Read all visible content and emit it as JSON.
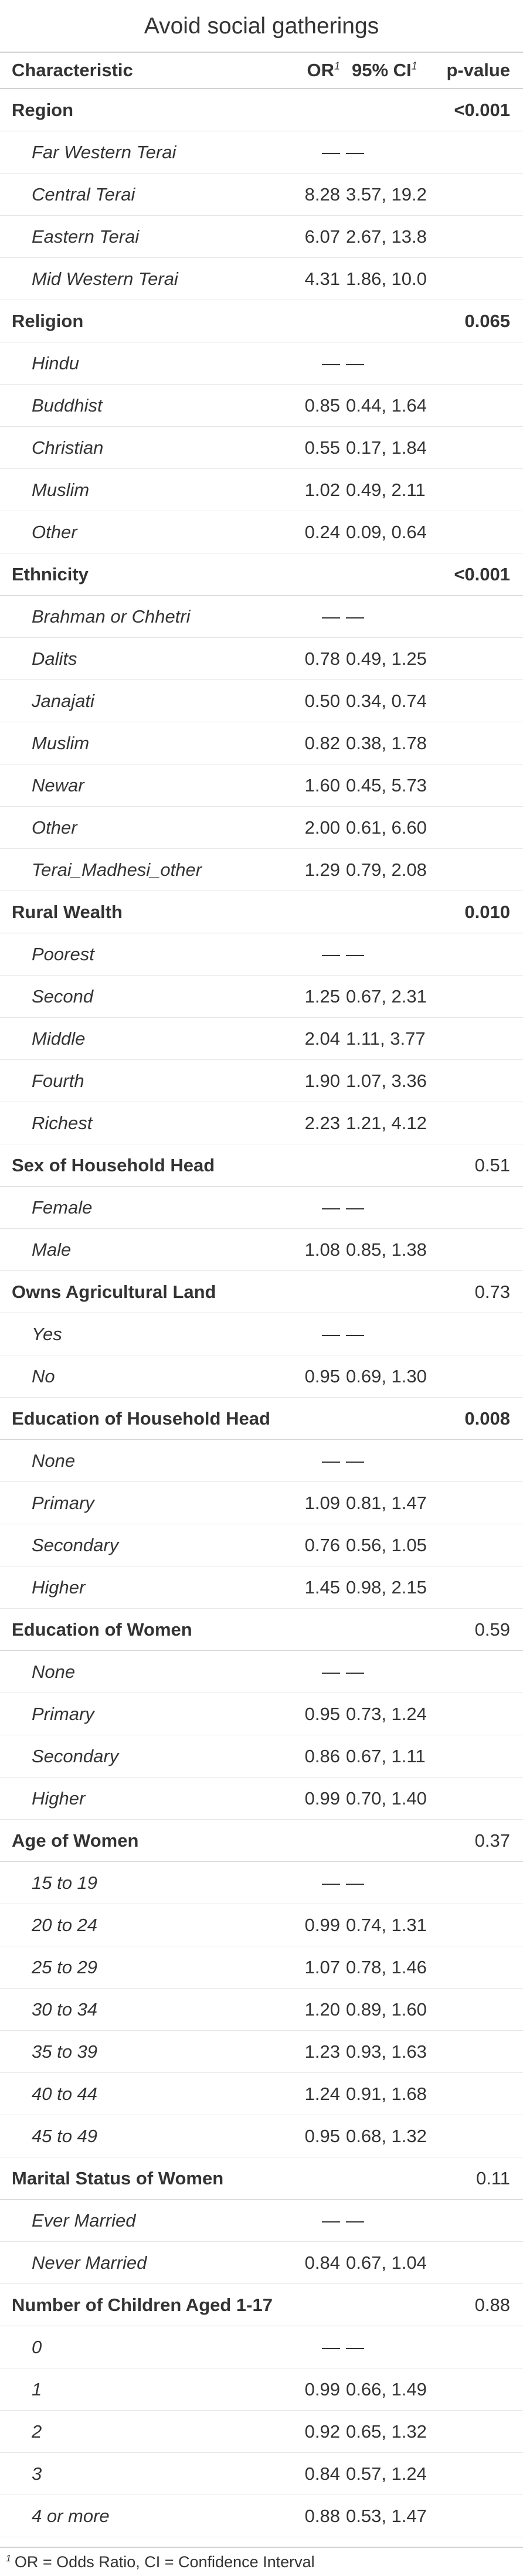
{
  "table": {
    "title": "Avoid social gatherings",
    "headers": {
      "characteristic": "Characteristic",
      "or": "OR",
      "ci": "95% CI",
      "p": "p-value",
      "footnote_mark": "1"
    },
    "footnote": {
      "mark": "1",
      "text": "OR = Odds Ratio, CI = Confidence Interval"
    },
    "groups": [
      {
        "label": "Region",
        "p": "<0.001",
        "p_bold": true,
        "rows": [
          {
            "label": "Far Western Terai",
            "or": "—",
            "ci": "—"
          },
          {
            "label": "Central Terai",
            "or": "8.28",
            "ci": "3.57, 19.2"
          },
          {
            "label": "Eastern Terai",
            "or": "6.07",
            "ci": "2.67, 13.8"
          },
          {
            "label": "Mid Western Terai",
            "or": "4.31",
            "ci": "1.86, 10.0"
          }
        ]
      },
      {
        "label": "Religion",
        "p": "0.065",
        "p_bold": true,
        "rows": [
          {
            "label": "Hindu",
            "or": "—",
            "ci": "—"
          },
          {
            "label": "Buddhist",
            "or": "0.85",
            "ci": "0.44, 1.64"
          },
          {
            "label": "Christian",
            "or": "0.55",
            "ci": "0.17, 1.84"
          },
          {
            "label": "Muslim",
            "or": "1.02",
            "ci": "0.49, 2.11"
          },
          {
            "label": "Other",
            "or": "0.24",
            "ci": "0.09, 0.64"
          }
        ]
      },
      {
        "label": "Ethnicity",
        "p": "<0.001",
        "p_bold": true,
        "rows": [
          {
            "label": "Brahman or Chhetri",
            "or": "—",
            "ci": "—"
          },
          {
            "label": "Dalits",
            "or": "0.78",
            "ci": "0.49, 1.25"
          },
          {
            "label": "Janajati",
            "or": "0.50",
            "ci": "0.34, 0.74"
          },
          {
            "label": "Muslim",
            "or": "0.82",
            "ci": "0.38, 1.78"
          },
          {
            "label": "Newar",
            "or": "1.60",
            "ci": "0.45, 5.73"
          },
          {
            "label": "Other",
            "or": "2.00",
            "ci": "0.61, 6.60"
          },
          {
            "label": "Terai_Madhesi_other",
            "or": "1.29",
            "ci": "0.79, 2.08"
          }
        ]
      },
      {
        "label": "Rural Wealth",
        "p": "0.010",
        "p_bold": true,
        "rows": [
          {
            "label": "Poorest",
            "or": "—",
            "ci": "—"
          },
          {
            "label": "Second",
            "or": "1.25",
            "ci": "0.67, 2.31"
          },
          {
            "label": "Middle",
            "or": "2.04",
            "ci": "1.11, 3.77"
          },
          {
            "label": "Fourth",
            "or": "1.90",
            "ci": "1.07, 3.36"
          },
          {
            "label": "Richest",
            "or": "2.23",
            "ci": "1.21, 4.12"
          }
        ]
      },
      {
        "label": "Sex of Household Head",
        "p": "0.51",
        "p_bold": false,
        "rows": [
          {
            "label": "Female",
            "or": "—",
            "ci": "—"
          },
          {
            "label": "Male",
            "or": "1.08",
            "ci": "0.85, 1.38"
          }
        ]
      },
      {
        "label": "Owns Agricultural Land",
        "p": "0.73",
        "p_bold": false,
        "rows": [
          {
            "label": "Yes",
            "or": "—",
            "ci": "—"
          },
          {
            "label": "No",
            "or": "0.95",
            "ci": "0.69, 1.30"
          }
        ]
      },
      {
        "label": "Education of Household Head",
        "p": "0.008",
        "p_bold": true,
        "rows": [
          {
            "label": "None",
            "or": "—",
            "ci": "—"
          },
          {
            "label": "Primary",
            "or": "1.09",
            "ci": "0.81, 1.47"
          },
          {
            "label": "Secondary",
            "or": "0.76",
            "ci": "0.56, 1.05"
          },
          {
            "label": "Higher",
            "or": "1.45",
            "ci": "0.98, 2.15"
          }
        ]
      },
      {
        "label": "Education of Women",
        "p": "0.59",
        "p_bold": false,
        "rows": [
          {
            "label": "None",
            "or": "—",
            "ci": "—"
          },
          {
            "label": "Primary",
            "or": "0.95",
            "ci": "0.73, 1.24"
          },
          {
            "label": "Secondary",
            "or": "0.86",
            "ci": "0.67, 1.11"
          },
          {
            "label": "Higher",
            "or": "0.99",
            "ci": "0.70, 1.40"
          }
        ]
      },
      {
        "label": "Age of Women",
        "p": "0.37",
        "p_bold": false,
        "rows": [
          {
            "label": "15 to 19",
            "or": "—",
            "ci": "—"
          },
          {
            "label": "20 to 24",
            "or": "0.99",
            "ci": "0.74, 1.31"
          },
          {
            "label": "25 to 29",
            "or": "1.07",
            "ci": "0.78, 1.46"
          },
          {
            "label": "30 to 34",
            "or": "1.20",
            "ci": "0.89, 1.60"
          },
          {
            "label": "35 to 39",
            "or": "1.23",
            "ci": "0.93, 1.63"
          },
          {
            "label": "40 to 44",
            "or": "1.24",
            "ci": "0.91, 1.68"
          },
          {
            "label": "45 to 49",
            "or": "0.95",
            "ci": "0.68, 1.32"
          }
        ]
      },
      {
        "label": "Marital Status of Women",
        "p": "0.11",
        "p_bold": false,
        "rows": [
          {
            "label": "Ever Married",
            "or": "—",
            "ci": "—"
          },
          {
            "label": "Never Married",
            "or": "0.84",
            "ci": "0.67, 1.04"
          }
        ]
      },
      {
        "label": "Number of Children Aged 1-17",
        "p": "0.88",
        "p_bold": false,
        "rows": [
          {
            "label": "0",
            "or": "—",
            "ci": "—"
          },
          {
            "label": "1",
            "or": "0.99",
            "ci": "0.66, 1.49"
          },
          {
            "label": "2",
            "or": "0.92",
            "ci": "0.65, 1.32"
          },
          {
            "label": "3",
            "or": "0.84",
            "ci": "0.57, 1.24"
          },
          {
            "label": "4 or more",
            "or": "0.88",
            "ci": "0.53, 1.47"
          }
        ]
      }
    ]
  }
}
